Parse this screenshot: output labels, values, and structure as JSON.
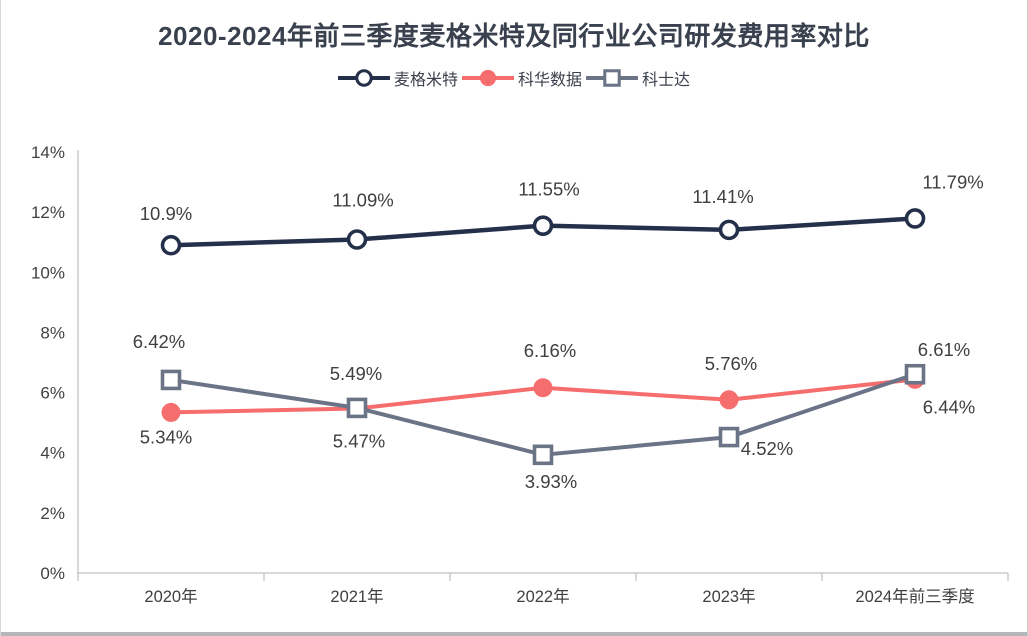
{
  "title": "2020-2024年前三季度麦格米特及同行业公司研发费用率对比",
  "colors": {
    "title_text": "#39404e",
    "label_text": "#404040",
    "axis_line": "#c9ccd1",
    "window_bottom_bar": "#b3b7bb",
    "window_edge": "#d8d8d8",
    "background": "#ffffff"
  },
  "chart_data": {
    "type": "line",
    "title": "2020-2024年前三季度麦格米特及同行业公司研发费用率对比",
    "categories": [
      "2020年",
      "2021年",
      "2022年",
      "2023年",
      "2024年前三季度"
    ],
    "y_ticks": [
      "0%",
      "2%",
      "4%",
      "6%",
      "8%",
      "10%",
      "12%",
      "14%"
    ],
    "y_tick_values": [
      0,
      2,
      4,
      6,
      8,
      10,
      12,
      14
    ],
    "ylim": [
      0,
      14
    ],
    "xlabel": "",
    "ylabel": "",
    "grid": false,
    "legend_position": "top",
    "draw_order": [
      1,
      2,
      0
    ],
    "series": [
      {
        "name": "麦格米特",
        "color": "#242f49",
        "marker": "circle-open",
        "line_width": 4.5,
        "values": [
          10.9,
          11.09,
          11.55,
          11.41,
          11.79
        ],
        "labels": [
          "10.9%",
          "11.09%",
          "11.55%",
          "11.41%",
          "11.79%"
        ],
        "label_offsets": [
          [
            -5,
            -25
          ],
          [
            6,
            -33
          ],
          [
            6,
            -30
          ],
          [
            -6,
            -27
          ],
          [
            38,
            -30
          ]
        ]
      },
      {
        "name": "科华数据",
        "color": "#f66d6d",
        "marker": "circle-filled",
        "line_width": 4,
        "values": [
          5.34,
          5.47,
          6.16,
          5.76,
          6.44
        ],
        "labels": [
          "5.34%",
          "5.47%",
          "6.16%",
          "5.76%",
          "6.44%"
        ],
        "label_offsets": [
          [
            -5,
            31
          ],
          [
            2,
            39
          ],
          [
            7,
            -31
          ],
          [
            2,
            -30
          ],
          [
            34,
            34
          ]
        ]
      },
      {
        "name": "科士达",
        "color": "#6b7486",
        "marker": "square-open",
        "line_width": 4,
        "values": [
          6.42,
          5.49,
          3.93,
          4.52,
          6.61
        ],
        "labels": [
          "6.42%",
          "5.49%",
          "3.93%",
          "4.52%",
          "6.61%"
        ],
        "label_offsets": [
          [
            -12,
            -32
          ],
          [
            -1,
            -28
          ],
          [
            8,
            33
          ],
          [
            38,
            18
          ],
          [
            29,
            -18
          ]
        ]
      }
    ]
  }
}
